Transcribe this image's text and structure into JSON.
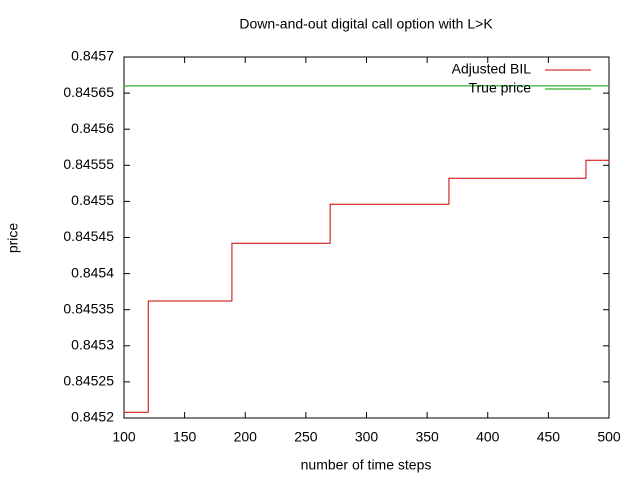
{
  "chart_data": {
    "type": "line",
    "title": "Down-and-out digital call option with L>K",
    "xlabel": "number of time steps",
    "ylabel": "price",
    "xlim": [
      100,
      500
    ],
    "ylim": [
      0.8452,
      0.8457
    ],
    "xticks": [
      100,
      150,
      200,
      250,
      300,
      350,
      400,
      450,
      500
    ],
    "yticks": [
      0.8452,
      0.84525,
      0.8453,
      0.84535,
      0.8454,
      0.84545,
      0.8455,
      0.84555,
      0.8456,
      0.84565,
      0.8457
    ],
    "step": true,
    "grid": false,
    "legend": "top-right",
    "series": [
      {
        "name": "Adjusted BIL",
        "color": "#cc0000",
        "x": [
          100,
          120,
          189,
          270,
          368,
          481,
          500
        ],
        "values": [
          0.845208,
          0.845362,
          0.845442,
          0.845496,
          0.845532,
          0.845557,
          0.845557
        ]
      },
      {
        "name": "True price",
        "color": "#00a000",
        "x": [
          100,
          500
        ],
        "values": [
          0.84566,
          0.84566
        ]
      }
    ]
  }
}
